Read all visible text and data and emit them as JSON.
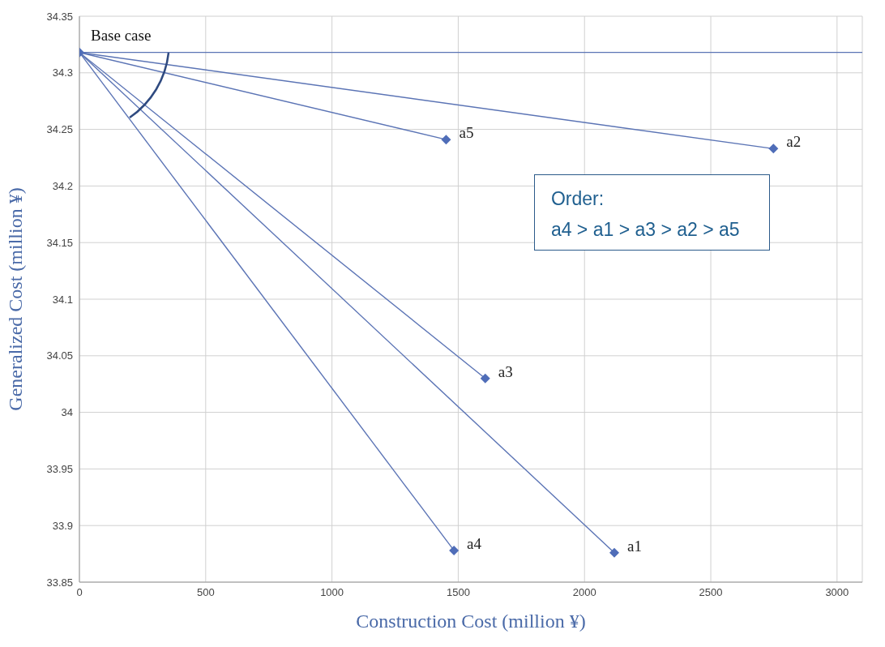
{
  "chart_data": {
    "type": "line",
    "xlabel": "Construction Cost (million ¥)",
    "ylabel": "Generalized Cost (million ¥)",
    "xlim": [
      0,
      3100
    ],
    "xticks": [
      0,
      500,
      1000,
      1500,
      2000,
      2500,
      3000
    ],
    "ylim": [
      33.85,
      34.35
    ],
    "yticks": [
      33.85,
      33.9,
      33.95,
      34,
      34.05,
      34.1,
      34.15,
      34.2,
      34.25,
      34.3,
      34.35
    ],
    "grid": true,
    "marker": "none",
    "line_style": "solid",
    "series": [
      {
        "name": "a5",
        "color": "#5b74b5",
        "x": [
          0,
          1452
        ],
        "values": [
          34.318,
          34.241
        ]
      },
      {
        "name": "a2",
        "color": "#5b74b5",
        "x": [
          0,
          2748
        ],
        "values": [
          34.318,
          34.233
        ]
      },
      {
        "name": "a3",
        "color": "#5b74b5",
        "x": [
          0,
          1607
        ],
        "values": [
          34.318,
          34.03
        ]
      },
      {
        "name": "a4",
        "color": "#5b74b5",
        "x": [
          0,
          1483
        ],
        "values": [
          34.318,
          33.878
        ]
      },
      {
        "name": "a1",
        "color": "#5b74b5",
        "x": [
          0,
          2118
        ],
        "values": [
          34.318,
          33.876
        ]
      },
      {
        "type": "scatter",
        "color": "#4f6db8",
        "marker": "diamond",
        "x": [
          0,
          1452,
          2748,
          1607,
          1483,
          2118
        ],
        "values": [
          34.318,
          34.241,
          34.233,
          34.03,
          33.878,
          33.876
        ]
      }
    ],
    "ref_lines": [
      {
        "axis": "y",
        "value": 34.318,
        "color": "#5b74b5"
      }
    ],
    "annotations": [
      {
        "text": "Base case",
        "x": 0,
        "y": 34.318
      },
      "Order:\na4 > a1 > a3 > a2 > a5"
    ]
  }
}
